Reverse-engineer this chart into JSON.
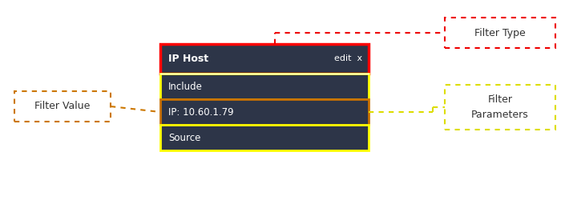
{
  "bg_color": "#ffffff",
  "dark_box_color": "#2d3548",
  "text_color": "#ffffff",
  "dark_text_color": "#333333",
  "header_label": "IP Host",
  "header_edit": "edit  x",
  "header_border_color": "#ff0000",
  "rows": [
    {
      "label": "Include",
      "border_color": "#ffff00"
    },
    {
      "label": "IP: 10.60.1.79",
      "border_color": "#c87000"
    },
    {
      "label": "Source",
      "border_color": "#ffff00"
    }
  ],
  "filter_type_label": "Filter Type",
  "filter_type_color": "#ee0000",
  "filter_value_label": "Filter Value",
  "filter_value_color": "#cc7700",
  "filter_params_label": "Filter\nParameters",
  "filter_params_color": "#dddd00",
  "connector_red": "#ee0000",
  "connector_orange": "#cc7700",
  "connector_yellow": "#dddd00"
}
